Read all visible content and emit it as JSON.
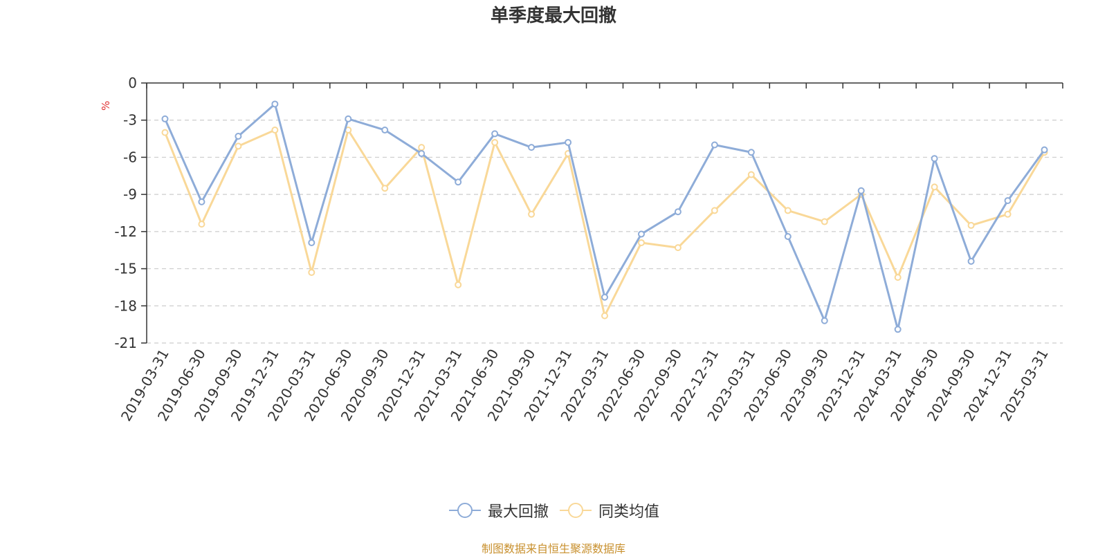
{
  "chart_data": {
    "type": "line",
    "title": "单季度最大回撤",
    "ylabel": "%",
    "ylim": [
      -21,
      0
    ],
    "yticks": [
      0,
      -3,
      -6,
      -9,
      -12,
      -15,
      -18,
      -21
    ],
    "grid": true,
    "legend_position": "bottom",
    "categories": [
      "2019-03-31",
      "2019-06-30",
      "2019-09-30",
      "2019-12-31",
      "2020-03-31",
      "2020-06-30",
      "2020-09-30",
      "2020-12-31",
      "2021-03-31",
      "2021-06-30",
      "2021-09-30",
      "2021-12-31",
      "2022-03-31",
      "2022-06-30",
      "2022-09-30",
      "2022-12-31",
      "2023-03-31",
      "2023-06-30",
      "2023-09-30",
      "2023-12-31",
      "2024-03-31",
      "2024-06-30",
      "2024-09-30",
      "2024-12-31",
      "2025-03-31"
    ],
    "series": [
      {
        "name": "最大回撤",
        "color": "#8eacd8",
        "values": [
          -2.9,
          -9.6,
          -4.3,
          -1.7,
          -12.9,
          -2.9,
          -3.8,
          -5.7,
          -8.0,
          -4.1,
          -5.2,
          -4.8,
          -17.3,
          -12.2,
          -10.4,
          -5.0,
          -5.6,
          -12.4,
          -19.2,
          -8.7,
          -19.9,
          -6.1,
          -14.4,
          -9.5,
          -5.4
        ]
      },
      {
        "name": "同类均值",
        "color": "#f9d898",
        "values": [
          -4.0,
          -11.4,
          -5.1,
          -3.8,
          -15.3,
          -3.8,
          -8.5,
          -5.2,
          -16.3,
          -4.8,
          -10.6,
          -5.7,
          -18.8,
          -12.9,
          -13.3,
          -10.3,
          -7.4,
          -10.3,
          -11.2,
          -9.0,
          -15.7,
          -8.4,
          -11.5,
          -10.6,
          -5.6
        ]
      }
    ]
  },
  "source_note": "制图数据来自恒生聚源数据库"
}
